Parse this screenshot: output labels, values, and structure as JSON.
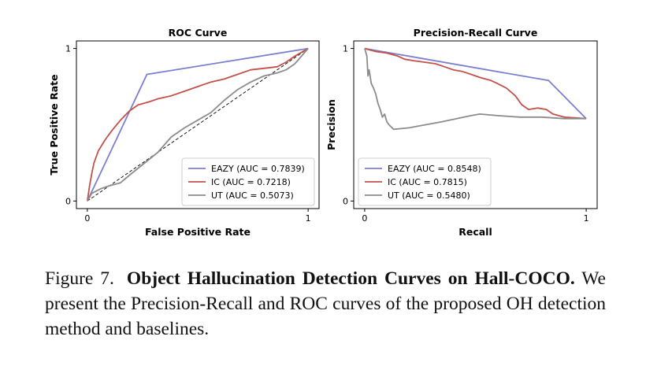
{
  "chart_data": [
    {
      "type": "line",
      "title": "ROC Curve",
      "xlabel": "False Positive Rate",
      "ylabel": "True Positive Rate",
      "xlim": [
        0,
        1
      ],
      "ylim": [
        0,
        1
      ],
      "xticks": [
        "0",
        "1"
      ],
      "yticks": [
        "0",
        "1"
      ],
      "legend_position": "lower-right",
      "grid": false,
      "diagonal_reference": true,
      "series": [
        {
          "name": "EAZY (AUC = 0.7839)",
          "color": "#7b7fd0",
          "points": [
            [
              0,
              0
            ],
            [
              0.27,
              0.83
            ],
            [
              1,
              1
            ]
          ]
        },
        {
          "name": "IC (AUC = 0.7218)",
          "color": "#c4504a",
          "points": [
            [
              0,
              0
            ],
            [
              0.01,
              0.1
            ],
            [
              0.02,
              0.18
            ],
            [
              0.03,
              0.25
            ],
            [
              0.05,
              0.33
            ],
            [
              0.08,
              0.4
            ],
            [
              0.11,
              0.46
            ],
            [
              0.15,
              0.53
            ],
            [
              0.19,
              0.59
            ],
            [
              0.23,
              0.63
            ],
            [
              0.28,
              0.65
            ],
            [
              0.32,
              0.67
            ],
            [
              0.38,
              0.69
            ],
            [
              0.44,
              0.72
            ],
            [
              0.5,
              0.75
            ],
            [
              0.56,
              0.78
            ],
            [
              0.62,
              0.8
            ],
            [
              0.68,
              0.83
            ],
            [
              0.74,
              0.86
            ],
            [
              0.8,
              0.87
            ],
            [
              0.86,
              0.88
            ],
            [
              0.9,
              0.91
            ],
            [
              0.94,
              0.95
            ],
            [
              1,
              1
            ]
          ]
        },
        {
          "name": "UT (AUC = 0.5073)",
          "color": "#8c8c8c",
          "points": [
            [
              0,
              0
            ],
            [
              0.02,
              0.05
            ],
            [
              0.06,
              0.08
            ],
            [
              0.1,
              0.1
            ],
            [
              0.15,
              0.12
            ],
            [
              0.2,
              0.18
            ],
            [
              0.26,
              0.25
            ],
            [
              0.32,
              0.32
            ],
            [
              0.38,
              0.42
            ],
            [
              0.44,
              0.48
            ],
            [
              0.5,
              0.53
            ],
            [
              0.56,
              0.58
            ],
            [
              0.62,
              0.66
            ],
            [
              0.68,
              0.73
            ],
            [
              0.74,
              0.78
            ],
            [
              0.8,
              0.82
            ],
            [
              0.86,
              0.84
            ],
            [
              0.9,
              0.86
            ],
            [
              0.94,
              0.9
            ],
            [
              1,
              1
            ]
          ]
        }
      ]
    },
    {
      "type": "line",
      "title": "Precision-Recall Curve",
      "xlabel": "Recall",
      "ylabel": "Precision",
      "xlim": [
        0,
        1
      ],
      "ylim": [
        0,
        1
      ],
      "xticks": [
        "0",
        "1"
      ],
      "yticks": [
        "0",
        "1"
      ],
      "legend_position": "lower-left",
      "grid": false,
      "diagonal_reference": false,
      "series": [
        {
          "name": "EAZY (AUC = 0.8548)",
          "color": "#7b7fd0",
          "points": [
            [
              0,
              1
            ],
            [
              0.83,
              0.79
            ],
            [
              1,
              0.54
            ]
          ]
        },
        {
          "name": "IC (AUC = 0.7815)",
          "color": "#c4504a",
          "points": [
            [
              0,
              1
            ],
            [
              0.05,
              0.98
            ],
            [
              0.1,
              0.97
            ],
            [
              0.15,
              0.95
            ],
            [
              0.18,
              0.93
            ],
            [
              0.22,
              0.92
            ],
            [
              0.27,
              0.91
            ],
            [
              0.32,
              0.9
            ],
            [
              0.36,
              0.88
            ],
            [
              0.4,
              0.86
            ],
            [
              0.44,
              0.85
            ],
            [
              0.48,
              0.83
            ],
            [
              0.52,
              0.81
            ],
            [
              0.57,
              0.79
            ],
            [
              0.6,
              0.77
            ],
            [
              0.64,
              0.74
            ],
            [
              0.68,
              0.69
            ],
            [
              0.71,
              0.63
            ],
            [
              0.74,
              0.6
            ],
            [
              0.78,
              0.61
            ],
            [
              0.82,
              0.6
            ],
            [
              0.85,
              0.57
            ],
            [
              0.9,
              0.55
            ],
            [
              1,
              0.54
            ]
          ]
        },
        {
          "name": "UT (AUC = 0.5480)",
          "color": "#8c8c8c",
          "points": [
            [
              0,
              1
            ],
            [
              0.01,
              0.95
            ],
            [
              0.015,
              0.82
            ],
            [
              0.02,
              0.86
            ],
            [
              0.03,
              0.77
            ],
            [
              0.04,
              0.74
            ],
            [
              0.05,
              0.7
            ],
            [
              0.06,
              0.64
            ],
            [
              0.07,
              0.6
            ],
            [
              0.08,
              0.55
            ],
            [
              0.09,
              0.57
            ],
            [
              0.1,
              0.52
            ],
            [
              0.11,
              0.5
            ],
            [
              0.13,
              0.47
            ],
            [
              0.2,
              0.48
            ],
            [
              0.35,
              0.52
            ],
            [
              0.48,
              0.56
            ],
            [
              0.52,
              0.57
            ],
            [
              0.6,
              0.56
            ],
            [
              0.7,
              0.55
            ],
            [
              0.8,
              0.55
            ],
            [
              0.9,
              0.54
            ],
            [
              1,
              0.54
            ]
          ]
        }
      ]
    }
  ],
  "caption": {
    "label": "Figure 7.",
    "title": "Object Hallucination Detection Curves on Hall-COCO.",
    "text": " We present the Precision-Recall and ROC curves of the proposed OH detection method and baselines."
  }
}
